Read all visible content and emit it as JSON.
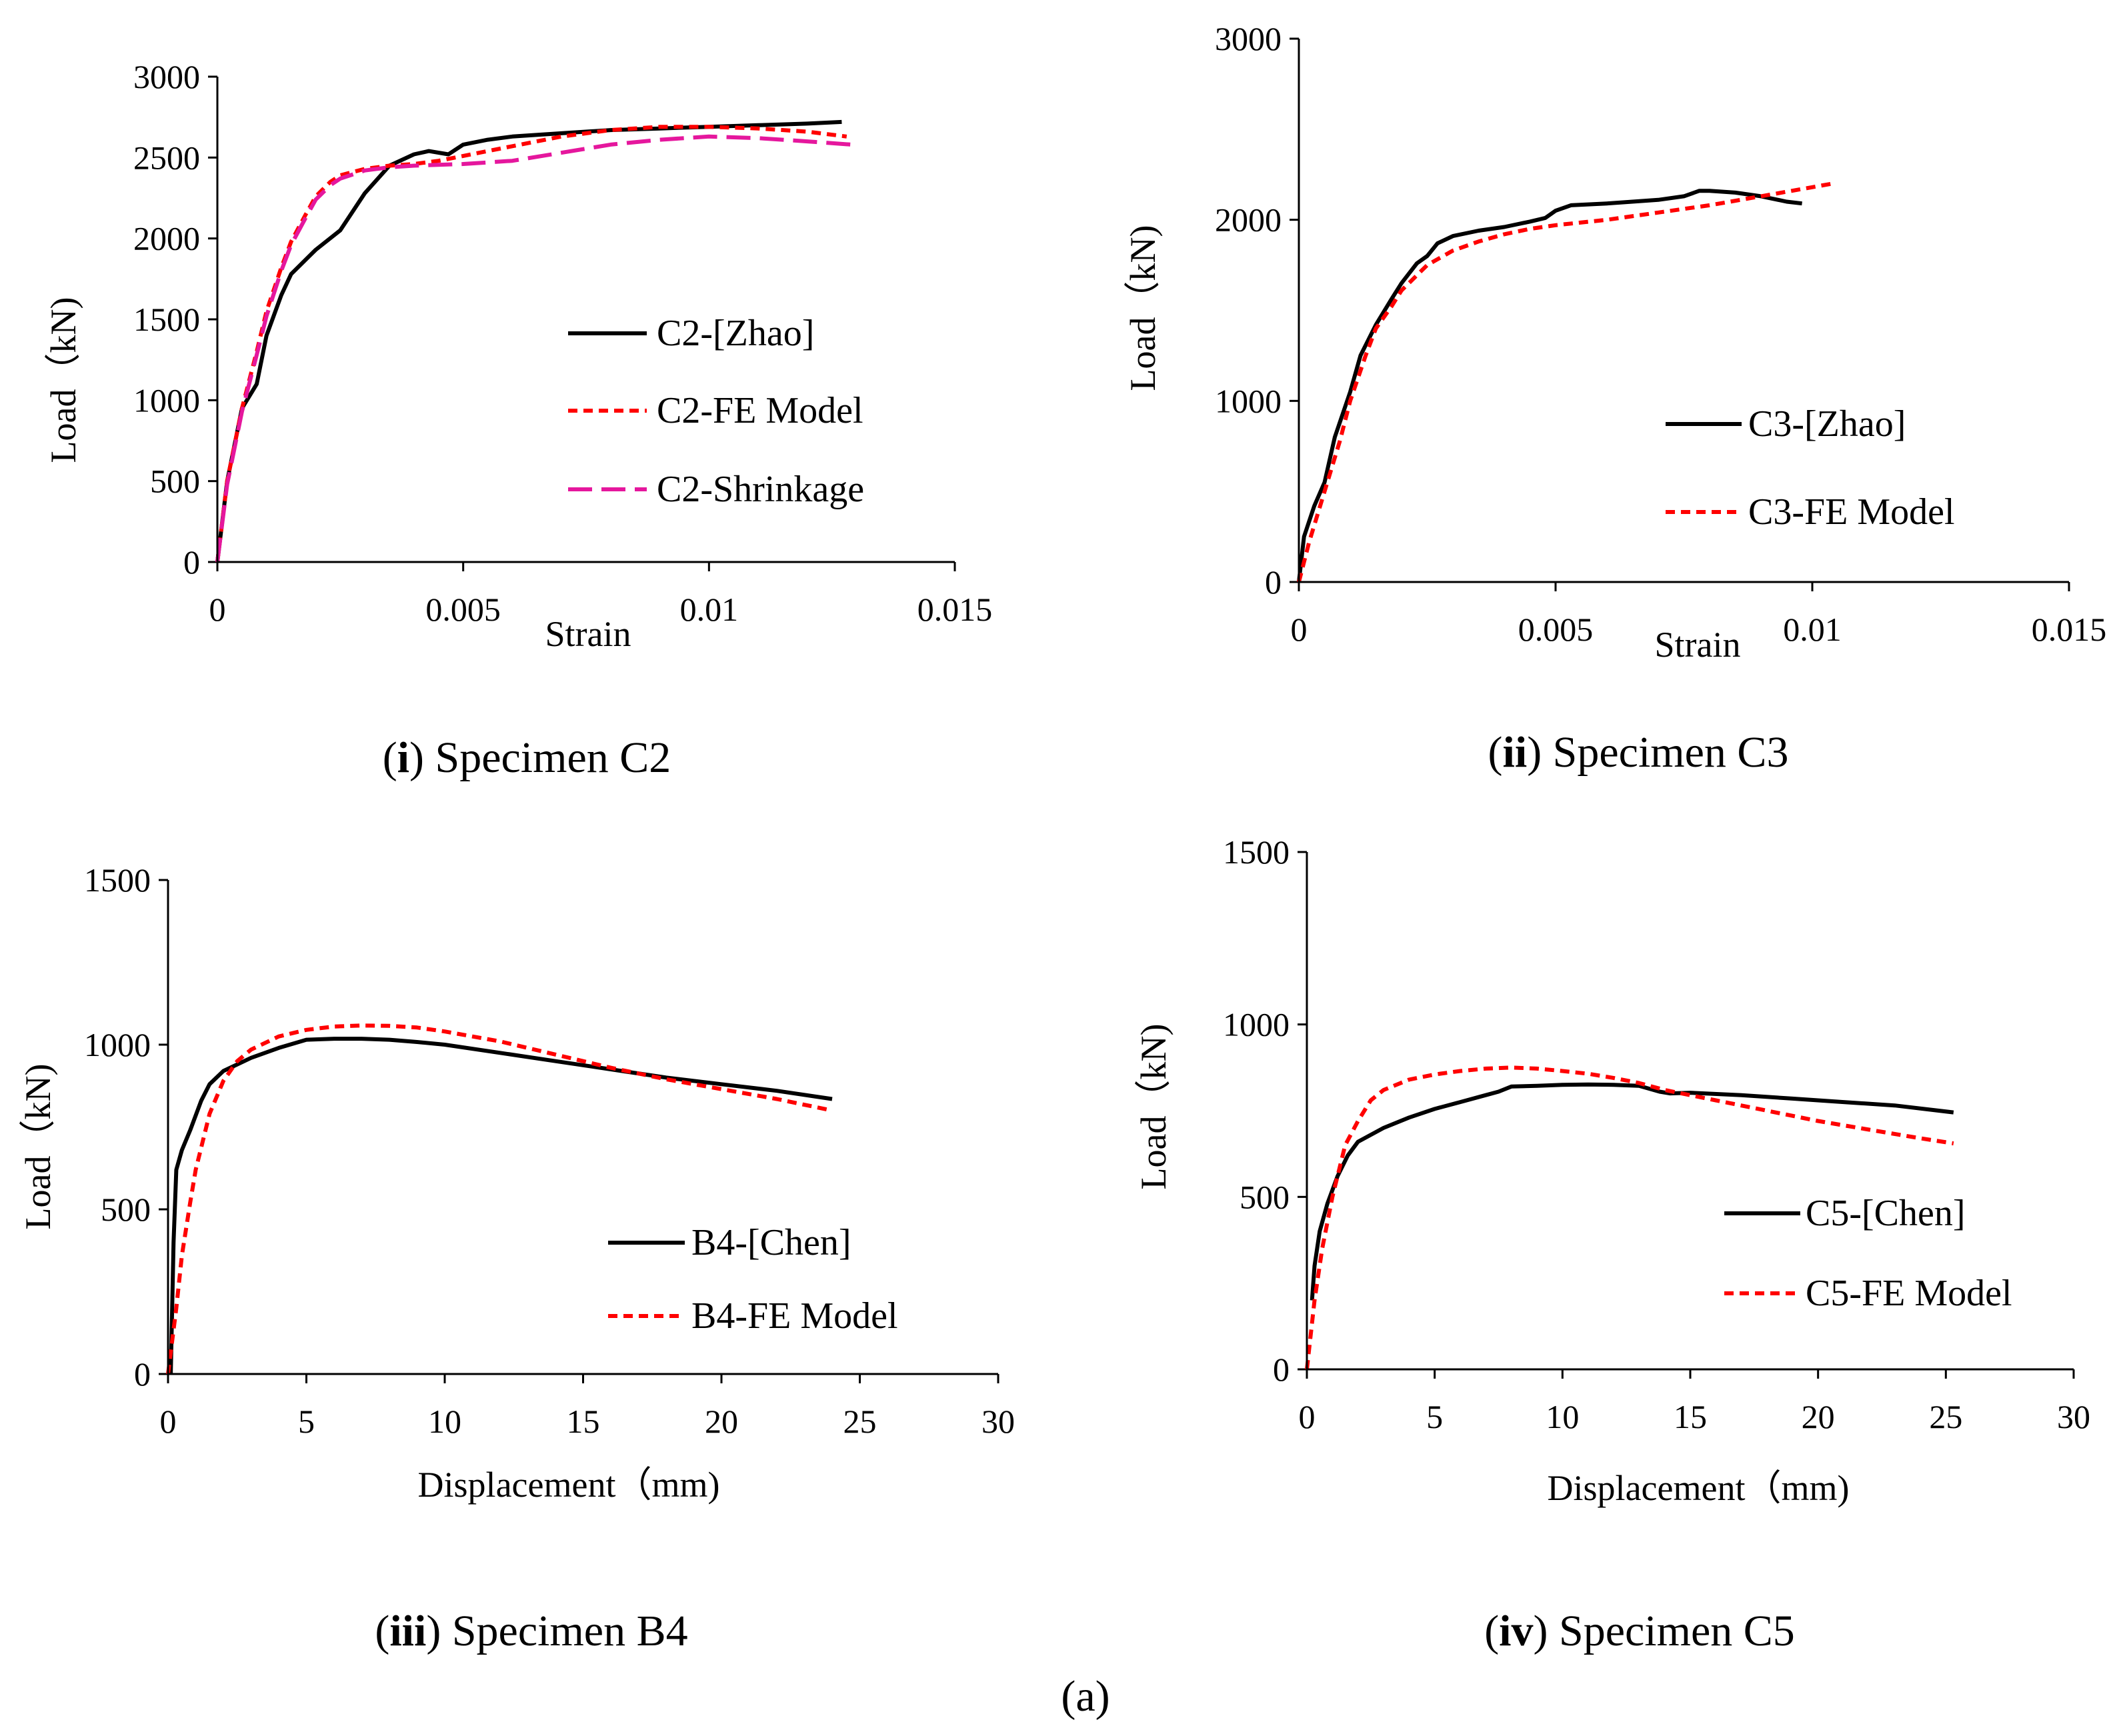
{
  "figure_label": "(a)",
  "chart_data": [
    {
      "id": "c2",
      "type": "line",
      "caption_num": "i",
      "caption_text": "Specimen C2",
      "xlabel": "Strain",
      "ylabel": "Load（kN)",
      "xlim": [
        0,
        0.015
      ],
      "ylim": [
        0,
        3000
      ],
      "xticks": [
        0,
        0.005,
        0.01,
        0.015
      ],
      "xtick_labels": [
        "0",
        "0.005",
        "0.01",
        "0.015"
      ],
      "yticks": [
        0,
        500,
        1000,
        1500,
        2000,
        2500,
        3000
      ],
      "ytick_labels": [
        "0",
        "500",
        "1000",
        "1500",
        "2000",
        "2500",
        "3000"
      ],
      "series": [
        {
          "name": "C2-[Zhao]",
          "color": "#000000",
          "style": "solid",
          "x": [
            0,
            0.0002,
            0.0005,
            0.0008,
            0.001,
            0.0013,
            0.0015,
            0.0018,
            0.002,
            0.0025,
            0.003,
            0.0035,
            0.004,
            0.0043,
            0.0047,
            0.005,
            0.0055,
            0.006,
            0.007,
            0.008,
            0.009,
            0.01,
            0.011,
            0.012,
            0.0127
          ],
          "y": [
            0,
            500,
            950,
            1100,
            1400,
            1650,
            1780,
            1870,
            1930,
            2050,
            2280,
            2450,
            2520,
            2540,
            2520,
            2580,
            2610,
            2630,
            2650,
            2670,
            2680,
            2690,
            2700,
            2710,
            2720
          ]
        },
        {
          "name": "C2-FE Model",
          "color": "#ff0000",
          "style": "short-dash",
          "x": [
            0,
            0.0002,
            0.0005,
            0.0008,
            0.001,
            0.0013,
            0.0015,
            0.0018,
            0.002,
            0.0023,
            0.0025,
            0.003,
            0.0035,
            0.004,
            0.0045,
            0.005,
            0.006,
            0.007,
            0.008,
            0.009,
            0.01,
            0.011,
            0.012,
            0.0128
          ],
          "y": [
            0,
            500,
            950,
            1300,
            1550,
            1820,
            1980,
            2150,
            2260,
            2350,
            2390,
            2430,
            2450,
            2460,
            2480,
            2510,
            2570,
            2630,
            2670,
            2690,
            2690,
            2680,
            2660,
            2630
          ]
        },
        {
          "name": "C2-Shrinkage",
          "color": "#e5179d",
          "style": "long-dash",
          "x": [
            0,
            0.0002,
            0.0005,
            0.0008,
            0.001,
            0.0013,
            0.0015,
            0.0018,
            0.002,
            0.0023,
            0.0025,
            0.003,
            0.0035,
            0.004,
            0.005,
            0.006,
            0.007,
            0.008,
            0.009,
            0.01,
            0.011,
            0.012,
            0.0129
          ],
          "y": [
            0,
            480,
            930,
            1280,
            1520,
            1800,
            1960,
            2130,
            2240,
            2330,
            2370,
            2420,
            2440,
            2450,
            2460,
            2480,
            2530,
            2580,
            2610,
            2630,
            2620,
            2600,
            2580
          ]
        }
      ]
    },
    {
      "id": "c3",
      "type": "line",
      "caption_num": "ii",
      "caption_text": "Specimen C3",
      "xlabel": "Strain",
      "ylabel": "Load（kN)",
      "xlim": [
        0,
        0.015
      ],
      "ylim": [
        0,
        3000
      ],
      "xticks": [
        0,
        0.005,
        0.01,
        0.015
      ],
      "xtick_labels": [
        "0",
        "0.005",
        "0.01",
        "0.015"
      ],
      "yticks": [
        0,
        1000,
        2000,
        3000
      ],
      "ytick_labels": [
        "0",
        "1000",
        "2000",
        "3000"
      ],
      "series": [
        {
          "name": "C3-[Zhao]",
          "color": "#000000",
          "style": "solid",
          "x": [
            0,
            0.0001,
            0.0003,
            0.0005,
            0.0007,
            0.001,
            0.0012,
            0.0015,
            0.0018,
            0.002,
            0.0023,
            0.0025,
            0.0027,
            0.003,
            0.0035,
            0.004,
            0.0045,
            0.0048,
            0.005,
            0.0053,
            0.006,
            0.007,
            0.0075,
            0.0078,
            0.008,
            0.0085,
            0.009,
            0.0095,
            0.0098
          ],
          "y": [
            0,
            250,
            420,
            550,
            800,
            1050,
            1250,
            1420,
            1560,
            1650,
            1760,
            1800,
            1870,
            1910,
            1940,
            1960,
            1990,
            2010,
            2050,
            2080,
            2090,
            2110,
            2130,
            2160,
            2160,
            2150,
            2130,
            2100,
            2090
          ]
        },
        {
          "name": "C3-FE Model",
          "color": "#ff0000",
          "style": "short-dash",
          "x": [
            0,
            0.0002,
            0.0005,
            0.0008,
            0.001,
            0.0013,
            0.0015,
            0.0018,
            0.002,
            0.0025,
            0.003,
            0.0035,
            0.004,
            0.0045,
            0.005,
            0.006,
            0.007,
            0.008,
            0.009,
            0.01,
            0.0104
          ],
          "y": [
            0,
            220,
            500,
            780,
            1000,
            1250,
            1400,
            1520,
            1610,
            1750,
            1830,
            1880,
            1920,
            1950,
            1970,
            2000,
            2040,
            2080,
            2130,
            2180,
            2200
          ]
        }
      ]
    },
    {
      "id": "b4",
      "type": "line",
      "caption_num": "iii",
      "caption_text": "Specimen B4",
      "xlabel": "Displacement（mm)",
      "ylabel": "Load（kN)",
      "xlim": [
        0,
        30
      ],
      "ylim": [
        0,
        1500
      ],
      "xticks": [
        0,
        5,
        10,
        15,
        20,
        25,
        30
      ],
      "xtick_labels": [
        "0",
        "5",
        "10",
        "15",
        "20",
        "25",
        "30"
      ],
      "yticks": [
        0,
        500,
        1000,
        1500
      ],
      "ytick_labels": [
        "0",
        "500",
        "1000",
        "1500"
      ],
      "series": [
        {
          "name": "B4-[Chen]",
          "color": "#000000",
          "style": "solid",
          "x": [
            0.1,
            0.2,
            0.3,
            0.5,
            0.8,
            1.2,
            1.5,
            2,
            3,
            4,
            5,
            6,
            7,
            8,
            9,
            10,
            12,
            14,
            16,
            18,
            20,
            22,
            24
          ],
          "y": [
            0,
            400,
            620,
            680,
            740,
            830,
            880,
            920,
            960,
            990,
            1015,
            1018,
            1018,
            1015,
            1008,
            1000,
            975,
            950,
            925,
            900,
            880,
            860,
            835
          ]
        },
        {
          "name": "B4-FE Model",
          "color": "#ff0000",
          "style": "short-dash",
          "x": [
            0,
            0.3,
            0.5,
            0.8,
            1,
            1.5,
            2,
            2.5,
            3,
            4,
            5,
            6,
            7,
            8,
            9,
            10,
            12,
            14,
            16,
            18,
            20,
            22,
            24
          ],
          "y": [
            0,
            200,
            360,
            520,
            620,
            790,
            890,
            950,
            985,
            1025,
            1045,
            1055,
            1058,
            1057,
            1052,
            1040,
            1010,
            970,
            930,
            895,
            865,
            835,
            800
          ]
        }
      ]
    },
    {
      "id": "c5",
      "type": "line",
      "caption_num": "iv",
      "caption_text": "Specimen C5",
      "xlabel": "Displacement（mm)",
      "ylabel": "Load（kN)",
      "xlim": [
        0,
        30
      ],
      "ylim": [
        0,
        1500
      ],
      "xticks": [
        0,
        5,
        10,
        15,
        20,
        25,
        30
      ],
      "xtick_labels": [
        "0",
        "5",
        "10",
        "15",
        "20",
        "25",
        "30"
      ],
      "yticks": [
        0,
        500,
        1000,
        1500
      ],
      "ytick_labels": [
        "0",
        "500",
        "1000",
        "1500"
      ],
      "series": [
        {
          "name": "C5-[Chen]",
          "color": "#000000",
          "style": "solid",
          "x": [
            0.2,
            0.3,
            0.5,
            0.8,
            1.2,
            1.6,
            2,
            3,
            4,
            5,
            6,
            7,
            7.5,
            8,
            9,
            10,
            11,
            12,
            13,
            13.8,
            14.2,
            15,
            17,
            19,
            21,
            23,
            25.3
          ],
          "y": [
            200,
            300,
            400,
            480,
            560,
            620,
            660,
            700,
            730,
            755,
            775,
            795,
            805,
            820,
            822,
            825,
            826,
            825,
            822,
            805,
            800,
            802,
            795,
            785,
            775,
            765,
            745
          ]
        },
        {
          "name": "C5-FE Model",
          "color": "#ff0000",
          "style": "short-dash",
          "x": [
            0,
            0.3,
            0.6,
            1,
            1.5,
            2,
            2.5,
            3,
            4,
            5,
            6,
            7,
            8,
            9,
            10,
            11,
            12,
            13,
            14,
            16,
            18,
            20,
            22,
            24,
            25.3
          ],
          "y": [
            0,
            200,
            350,
            500,
            650,
            720,
            780,
            810,
            840,
            855,
            865,
            872,
            875,
            872,
            865,
            857,
            845,
            830,
            810,
            780,
            750,
            720,
            695,
            670,
            655
          ]
        }
      ]
    }
  ]
}
